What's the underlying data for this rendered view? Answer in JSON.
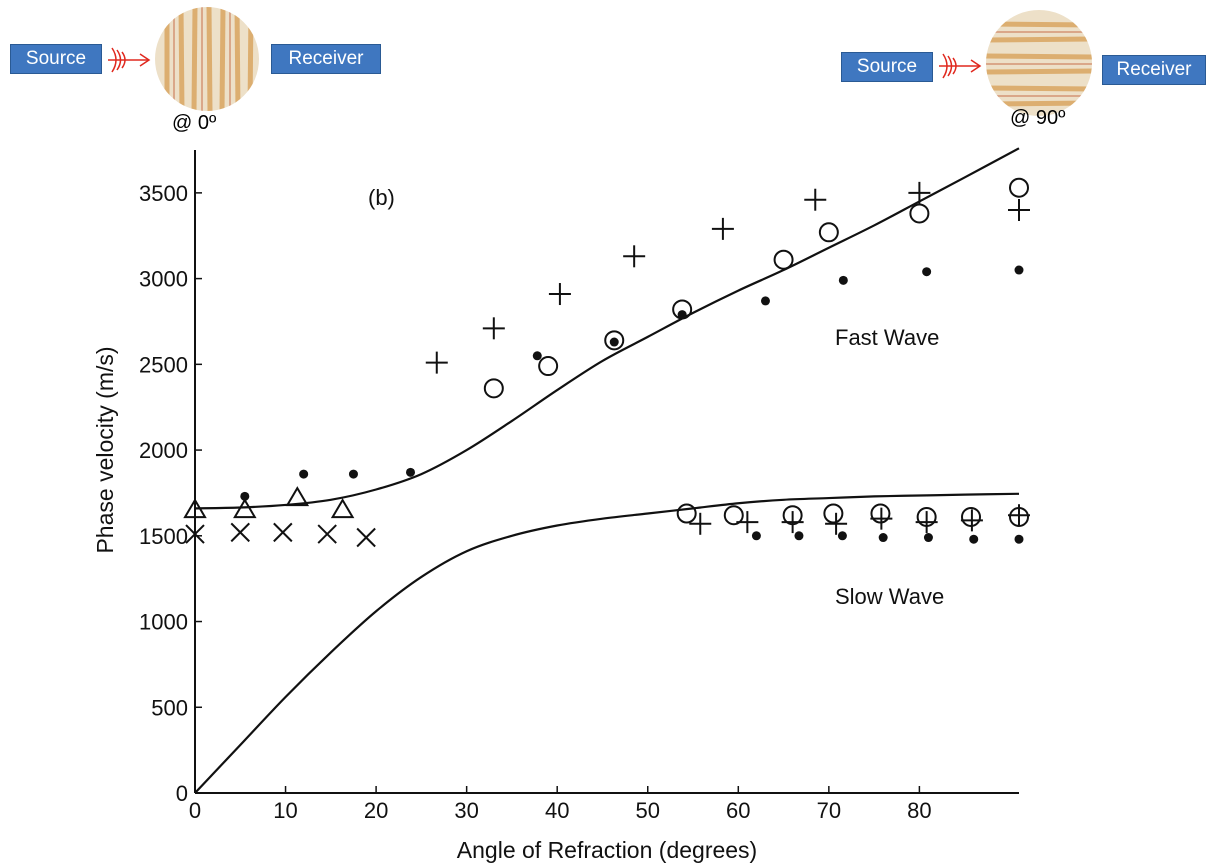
{
  "diagram_left": {
    "source_label": "Source",
    "receiver_label": "Receiver",
    "angle_label": "@ 0º"
  },
  "diagram_right": {
    "source_label": "Source",
    "receiver_label": "Receiver",
    "angle_label": "@ 90º"
  },
  "colors": {
    "box_fill": "#3f77c0",
    "arrow": "#e0281e",
    "sample": "#e8c89a"
  },
  "chart_data": {
    "type": "scatter",
    "title": "",
    "panel_label": "(b)",
    "xlabel": "Angle of Refraction (degrees)",
    "ylabel": "Phase velocity (m/s)",
    "xlim": [
      0,
      91
    ],
    "ylim": [
      0,
      3750
    ],
    "xticks": [
      0,
      10,
      20,
      30,
      40,
      50,
      60,
      70,
      80
    ],
    "yticks": [
      0,
      500,
      1000,
      1500,
      2000,
      2500,
      3000,
      3500
    ],
    "annotations": {
      "fast": "Fast Wave",
      "slow": "Slow Wave"
    },
    "curves": [
      {
        "name": "Fast Wave",
        "x": [
          0,
          5,
          10,
          15,
          20,
          25,
          30,
          35,
          40,
          45,
          50,
          55,
          60,
          65,
          70,
          75,
          80,
          85,
          91
        ],
        "y": [
          1660,
          1665,
          1680,
          1710,
          1770,
          1860,
          2000,
          2170,
          2350,
          2520,
          2660,
          2800,
          2930,
          3050,
          3180,
          3310,
          3450,
          3590,
          3760
        ]
      },
      {
        "name": "Slow Wave",
        "x": [
          0,
          5,
          10,
          15,
          20,
          25,
          30,
          35,
          40,
          45,
          50,
          55,
          60,
          65,
          70,
          75,
          80,
          85,
          91
        ],
        "y": [
          0,
          280,
          560,
          820,
          1060,
          1260,
          1410,
          1500,
          1560,
          1600,
          1630,
          1660,
          1690,
          1710,
          1720,
          1730,
          1735,
          1740,
          1745
        ]
      }
    ],
    "series": [
      {
        "marker": "plus",
        "x": [
          26.7,
          33,
          40.3,
          48.5,
          58.3,
          68.5,
          80,
          91,
          55.8,
          61,
          66,
          70.8,
          75.8,
          80.8,
          85.8,
          91
        ],
        "y": [
          2510,
          2710,
          2910,
          3130,
          3290,
          3460,
          3500,
          3400,
          1570,
          1580,
          1580,
          1570,
          1600,
          1580,
          1590,
          1620
        ]
      },
      {
        "marker": "circle",
        "x": [
          33,
          39,
          46.3,
          53.8,
          54.3,
          59.5,
          65,
          66,
          70,
          70.5,
          75.7,
          80,
          80.8,
          85.7,
          91,
          91
        ],
        "y": [
          2360,
          2490,
          2640,
          2820,
          1630,
          1620,
          3110,
          1620,
          3270,
          1630,
          1630,
          3380,
          1610,
          1610,
          3530,
          1610
        ]
      },
      {
        "marker": "dot",
        "x": [
          5.5,
          12,
          17.5,
          23.8,
          37.8,
          46.3,
          53.8,
          63,
          71.6,
          80.8,
          91,
          62,
          66.7,
          71.5,
          76,
          81,
          86,
          91
        ],
        "y": [
          1730,
          1860,
          1860,
          1870,
          2550,
          2630,
          2790,
          2870,
          2990,
          3040,
          3050,
          1500,
          1500,
          1500,
          1490,
          1490,
          1480,
          1480
        ]
      },
      {
        "marker": "triangle",
        "x": [
          0,
          5.5,
          11.3,
          16.3
        ],
        "y": [
          1650,
          1650,
          1720,
          1650
        ]
      },
      {
        "marker": "cross",
        "x": [
          0,
          5,
          9.7,
          14.6,
          18.9
        ],
        "y": [
          1510,
          1520,
          1520,
          1510,
          1490
        ]
      }
    ]
  }
}
